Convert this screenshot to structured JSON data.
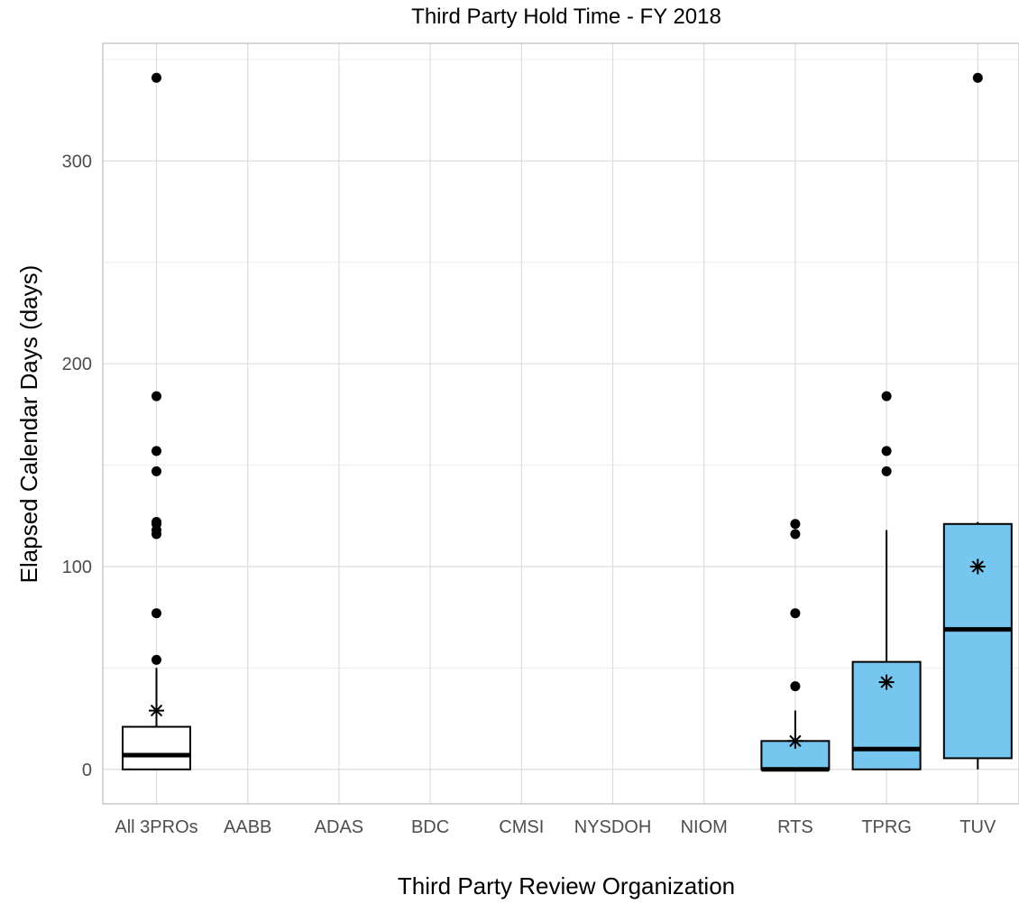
{
  "chart_data": {
    "type": "boxplot",
    "title": "Third Party Hold Time - FY 2018",
    "xlabel": "Third Party Review Organization",
    "ylabel": "Elapsed Calendar Days (days)",
    "ylim": [
      -17,
      358
    ],
    "yticks": [
      0,
      100,
      200,
      300
    ],
    "grid": true,
    "categories": [
      "All 3PROs",
      "AABB",
      "ADAS",
      "BDC",
      "CMSI",
      "NYSDOH",
      "NIOM",
      "RTS",
      "TPRG",
      "TUV"
    ],
    "boxes": [
      {
        "category": "All 3PROs",
        "q1": 0,
        "median": 7,
        "q3": 21,
        "whisker_low": 0,
        "whisker_high": 50,
        "mean": 29,
        "outliers": [
          54,
          77,
          116,
          118,
          121,
          122,
          147,
          157,
          184,
          341
        ],
        "fill": "#ffffff"
      },
      {
        "category": "RTS",
        "q1": 0,
        "median": 0,
        "q3": 14,
        "whisker_low": 0,
        "whisker_high": 29,
        "mean": 14,
        "outliers": [
          41,
          77,
          116,
          121
        ],
        "fill": "#76c6f0"
      },
      {
        "category": "TPRG",
        "q1": 0,
        "median": 10,
        "q3": 53,
        "whisker_low": 0,
        "whisker_high": 118,
        "mean": 43,
        "outliers": [
          147,
          157,
          184
        ],
        "fill": "#76c6f0"
      },
      {
        "category": "TUV",
        "q1": 5.5,
        "median": 69,
        "q3": 121,
        "whisker_low": 0,
        "whisker_high": 122,
        "mean": 100,
        "outliers": [
          341
        ],
        "fill": "#76c6f0"
      }
    ]
  }
}
